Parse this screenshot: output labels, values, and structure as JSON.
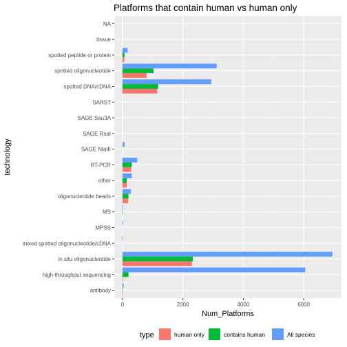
{
  "chart_data": {
    "type": "bar",
    "orientation": "horizontal",
    "title": "Platforms that contain human vs human only",
    "xlabel": "Num_Platforms",
    "ylabel": "technology",
    "xlim": [
      -270,
      7250
    ],
    "xticks": [
      0,
      2000,
      4000,
      6000
    ],
    "xtick_labels": [
      "0",
      "2000",
      "4000",
      "6000"
    ],
    "grid": true,
    "legend_position": "bottom",
    "legend_title": "type",
    "categories": [
      "antibody",
      "high-throughput sequencing",
      "in situ oligonucleotide",
      "mixed spotted oligonucleotide/cDNA",
      "MPSS",
      "MS",
      "oligonucleotide beads",
      "other",
      "RT-PCR",
      "SAGE NlaIII",
      "SAGE RsaI",
      "SAGE Sau3A",
      "SARST",
      "spotted DNA/cDNA",
      "spotted oligonucleotide",
      "spotted peptide or protein",
      "tissue",
      "NA"
    ],
    "series": [
      {
        "name": "human only",
        "color": "#F8766D",
        "values": [
          5,
          20,
          2300,
          0,
          0,
          0,
          190,
          140,
          290,
          0,
          0,
          0,
          0,
          1150,
          800,
          60,
          0,
          0
        ]
      },
      {
        "name": "contains human",
        "color": "#00BA38",
        "values": [
          10,
          200,
          2330,
          0,
          0,
          5,
          200,
          145,
          310,
          0,
          0,
          0,
          0,
          1180,
          1030,
          70,
          0,
          0
        ]
      },
      {
        "name": "All species",
        "color": "#619CFF",
        "values": [
          40,
          6050,
          6950,
          20,
          20,
          20,
          280,
          310,
          490,
          70,
          0,
          0,
          0,
          2940,
          3120,
          170,
          0,
          0
        ]
      }
    ]
  }
}
